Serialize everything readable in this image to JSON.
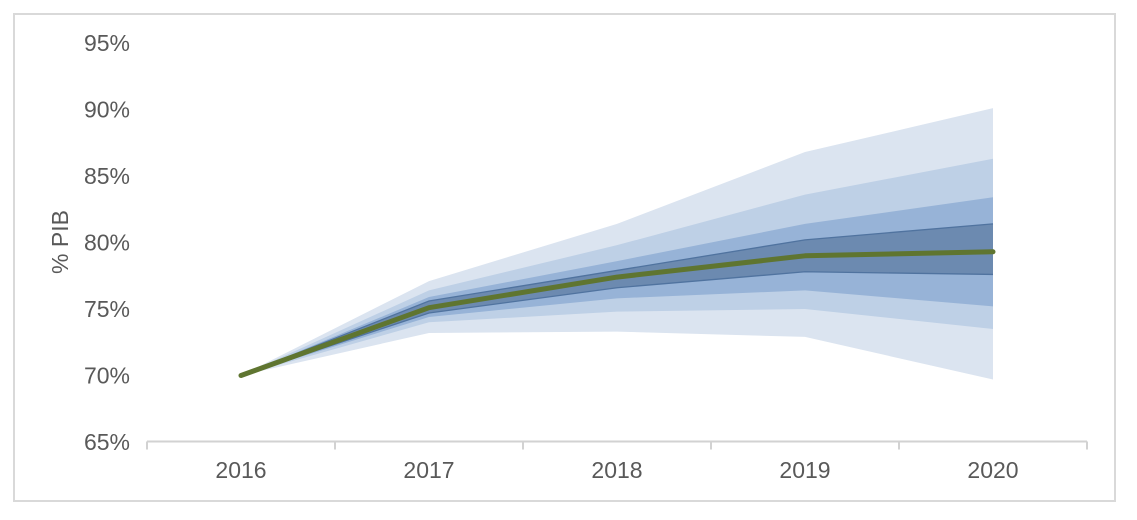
{
  "window": {
    "background_color": "#ffffff",
    "frame_border_color": "#d9d9d9"
  },
  "chart_data": {
    "type": "area",
    "subtype": "fan-chart",
    "title": "",
    "xlabel": "",
    "ylabel": "% PIB",
    "legend": "none",
    "grid": false,
    "x_categories": [
      "2016",
      "2017",
      "2018",
      "2019",
      "2020"
    ],
    "y_ticks": [
      "65%",
      "70%",
      "75%",
      "80%",
      "85%",
      "90%",
      "95%"
    ],
    "y_tick_values": [
      65,
      70,
      75,
      80,
      85,
      90,
      95
    ],
    "ylim": [
      65,
      95
    ],
    "axis_color": "#d2d2d2",
    "tick_label_color": "#595959",
    "central_line": {
      "name": "central-projection",
      "color": "#5f7530",
      "stroke_width": 5,
      "values": [
        70.0,
        75.1,
        77.4,
        79.0,
        79.3
      ]
    },
    "bands": [
      {
        "name": "confidence-band-outer",
        "color": "#dbe4f0",
        "upper": [
          70.0,
          77.1,
          81.4,
          86.8,
          90.1
        ],
        "lower": [
          70.0,
          73.2,
          73.3,
          72.9,
          69.7
        ]
      },
      {
        "name": "confidence-band-2",
        "color": "#bed0e6",
        "upper": [
          70.0,
          76.4,
          79.8,
          83.6,
          86.3
        ],
        "lower": [
          70.0,
          74.0,
          74.8,
          75.0,
          73.5
        ]
      },
      {
        "name": "confidence-band-3",
        "color": "#97b3d7",
        "upper": [
          70.0,
          75.9,
          78.6,
          81.4,
          83.4
        ],
        "lower": [
          70.0,
          74.4,
          75.8,
          76.4,
          75.2
        ]
      },
      {
        "name": "confidence-band-inner",
        "color": "#6c8ab0",
        "edge_color": "#50739f",
        "upper": [
          70.0,
          75.6,
          77.9,
          80.2,
          81.4
        ],
        "lower": [
          70.0,
          74.7,
          76.6,
          77.8,
          77.6
        ]
      }
    ]
  }
}
